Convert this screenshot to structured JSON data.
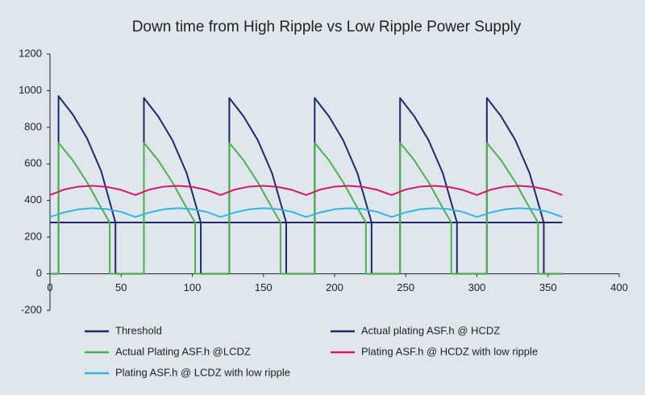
{
  "chart_data": {
    "type": "line",
    "title": "Down time from High Ripple vs Low Ripple Power Supply",
    "xlim": [
      0,
      400
    ],
    "xticks": [
      0,
      50,
      100,
      150,
      200,
      250,
      300,
      350,
      400
    ],
    "ylim": [
      -200,
      1200
    ],
    "yticks": [
      -200,
      0,
      200,
      400,
      600,
      800,
      1000,
      1200
    ],
    "series": [
      {
        "name": "Threshold",
        "color": "#1b2a6b",
        "x": [
          0,
          360
        ],
        "values": [
          280,
          280
        ]
      },
      {
        "name": "Actual plating ASF.h @ HCDZ",
        "color": "#1b2a6b",
        "x": [
          0,
          6,
          6,
          16,
          26,
          36,
          46,
          46,
          66,
          66,
          76,
          86,
          96,
          106,
          106,
          126,
          126,
          136,
          146,
          156,
          166,
          166,
          186,
          186,
          196,
          206,
          216,
          226,
          226,
          246,
          246,
          256,
          266,
          276,
          286,
          286,
          307,
          307,
          317,
          327,
          337,
          347,
          347,
          360
        ],
        "values": [
          0,
          0,
          970,
          870,
          740,
          560,
          280,
          0,
          0,
          960,
          860,
          730,
          550,
          280,
          0,
          0,
          960,
          860,
          730,
          550,
          280,
          0,
          0,
          960,
          860,
          730,
          550,
          280,
          0,
          0,
          960,
          860,
          730,
          550,
          280,
          0,
          0,
          960,
          860,
          730,
          550,
          280,
          0,
          0
        ]
      },
      {
        "name": "Actual Plating ASF.h @LCDZ",
        "color": "#4caf50",
        "x": [
          0,
          6,
          6,
          16,
          26,
          36,
          42,
          42,
          66,
          66,
          76,
          86,
          96,
          102,
          102,
          126,
          126,
          136,
          146,
          156,
          162,
          162,
          186,
          186,
          196,
          206,
          216,
          222,
          222,
          246,
          246,
          256,
          266,
          276,
          282,
          282,
          307,
          307,
          317,
          327,
          337,
          343,
          343,
          360
        ],
        "values": [
          0,
          0,
          715,
          620,
          500,
          360,
          280,
          0,
          0,
          715,
          620,
          500,
          360,
          280,
          0,
          0,
          715,
          620,
          500,
          360,
          280,
          0,
          0,
          715,
          620,
          500,
          360,
          280,
          0,
          0,
          715,
          620,
          500,
          360,
          280,
          0,
          0,
          715,
          620,
          500,
          360,
          280,
          0,
          0
        ]
      },
      {
        "name": "Plating ASF.h @ HCDZ with low ripple",
        "color": "#d6176f",
        "x": [
          0,
          10,
          20,
          30,
          40,
          50,
          60,
          70,
          80,
          90,
          100,
          110,
          120,
          130,
          140,
          150,
          160,
          170,
          180,
          190,
          200,
          210,
          220,
          230,
          240,
          250,
          260,
          270,
          280,
          290,
          300,
          310,
          320,
          330,
          340,
          350,
          360
        ],
        "values": [
          430,
          460,
          476,
          480,
          474,
          458,
          430,
          460,
          476,
          480,
          474,
          458,
          430,
          460,
          476,
          480,
          474,
          458,
          430,
          460,
          476,
          480,
          474,
          458,
          430,
          460,
          476,
          480,
          474,
          458,
          430,
          460,
          476,
          480,
          474,
          458,
          430
        ]
      },
      {
        "name": "Plating ASF.h @ LCDZ with low ripple",
        "color": "#33b5e5",
        "x": [
          0,
          10,
          20,
          30,
          40,
          50,
          60,
          70,
          80,
          90,
          100,
          110,
          120,
          130,
          140,
          150,
          160,
          170,
          180,
          190,
          200,
          210,
          220,
          230,
          240,
          250,
          260,
          270,
          280,
          290,
          300,
          310,
          320,
          330,
          340,
          350,
          360
        ],
        "values": [
          310,
          335,
          352,
          358,
          353,
          338,
          310,
          335,
          352,
          358,
          353,
          338,
          310,
          335,
          352,
          358,
          353,
          338,
          310,
          335,
          352,
          358,
          353,
          338,
          310,
          335,
          352,
          358,
          353,
          338,
          310,
          335,
          352,
          358,
          353,
          338,
          310
        ]
      }
    ]
  }
}
